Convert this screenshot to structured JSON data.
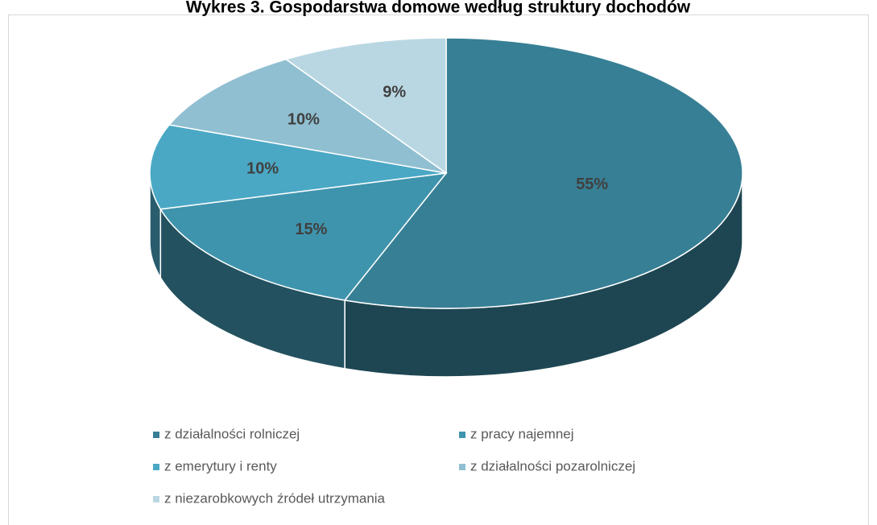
{
  "chart_data": {
    "type": "pie3d",
    "title": "Wykres 3. Gospodarstwa domowe według struktury dochodów",
    "categories": [
      "z działalności rolniczej",
      "z pracy najemnej",
      "z emerytury i renty",
      "z działalności pozarolniczej",
      "z niezarobkowych źródeł utrzymania"
    ],
    "values": [
      55,
      15,
      10,
      10,
      9
    ],
    "value_labels": [
      "55%",
      "15%",
      "10%",
      "10%",
      "9%"
    ],
    "colors": [
      "#377f95",
      "#3f94ad",
      "#4aa8c5",
      "#8fbfd1",
      "#b9d7e3"
    ],
    "legend": "bottom"
  }
}
